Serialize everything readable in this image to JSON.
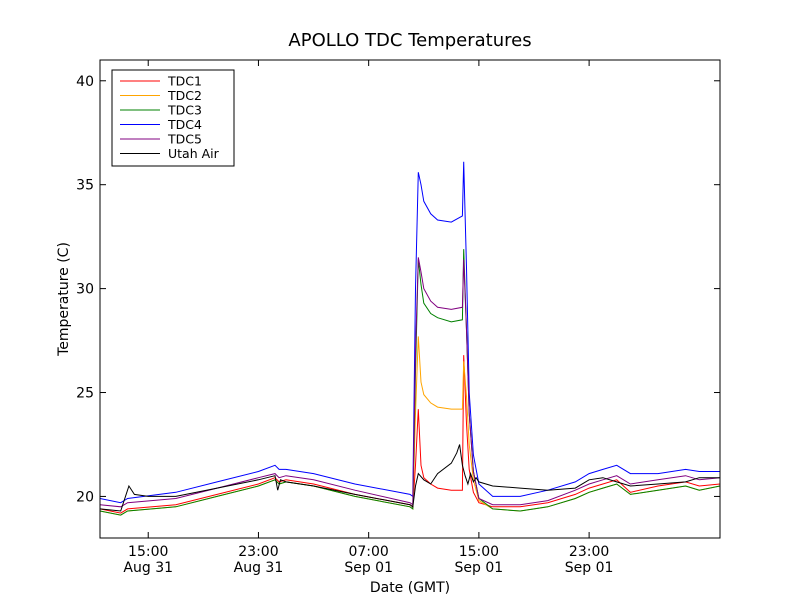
{
  "chart_data": {
    "type": "line",
    "title": "APOLLO TDC Temperatures",
    "xlabel": "Date (GMT)",
    "ylabel": "Temperature (C)",
    "ylim": [
      18,
      41
    ],
    "xlim": [
      11.5,
      56.5
    ],
    "x_unit": "hours since Aug 31 00:00 GMT",
    "yticks": [
      20,
      25,
      30,
      35,
      40
    ],
    "xticks": [
      {
        "x": 15,
        "label1": "15:00",
        "label2": "Aug 31"
      },
      {
        "x": 23,
        "label1": "23:00",
        "label2": "Aug 31"
      },
      {
        "x": 31,
        "label1": "07:00",
        "label2": "Sep 01"
      },
      {
        "x": 39,
        "label1": "15:00",
        "label2": "Sep 01"
      },
      {
        "x": 47,
        "label1": "23:00",
        "label2": "Sep 01"
      }
    ],
    "legend_position": "top-left",
    "series": [
      {
        "name": "TDC1",
        "color": "#ff0000",
        "x": [
          11.5,
          13,
          13.5,
          17,
          20,
          23,
          24.2,
          24.5,
          25,
          27,
          30,
          34,
          34.2,
          34.4,
          34.6,
          34.8,
          35,
          35.5,
          36,
          37,
          37.8,
          37.9,
          38.1,
          38.3,
          38.6,
          39,
          40,
          42,
          44,
          46,
          47,
          48,
          49,
          50,
          52,
          54,
          55,
          56.5
        ],
        "y": [
          19.4,
          19.2,
          19.4,
          19.6,
          20.1,
          20.6,
          20.9,
          20.7,
          20.8,
          20.6,
          20.1,
          19.6,
          19.5,
          21.5,
          24.2,
          21.5,
          20.9,
          20.6,
          20.4,
          20.3,
          20.3,
          26.8,
          23.5,
          21.3,
          20.2,
          19.7,
          19.5,
          19.5,
          19.7,
          20.1,
          20.4,
          20.6,
          20.8,
          20.2,
          20.5,
          20.7,
          20.5,
          20.6
        ]
      },
      {
        "name": "TDC2",
        "color": "#ffa500",
        "x": [
          11.5,
          13,
          13.5,
          17,
          20,
          23,
          24.2,
          24.5,
          25,
          27,
          30,
          34,
          34.2,
          34.4,
          34.6,
          34.8,
          35,
          35.5,
          36,
          37,
          37.8,
          37.9,
          38.1,
          38.3,
          38.6,
          39,
          40,
          42,
          44,
          46,
          47,
          48,
          49,
          50,
          52,
          54,
          55,
          56.5
        ],
        "y": [
          19.3,
          19.1,
          19.3,
          19.5,
          20,
          20.5,
          20.8,
          20.6,
          20.7,
          20.5,
          20,
          19.5,
          19.4,
          24,
          27.7,
          25.5,
          24.9,
          24.5,
          24.3,
          24.2,
          24.2,
          26.5,
          24.8,
          22.5,
          20.8,
          19.8,
          19.4,
          19.3,
          19.5,
          19.9,
          20.2,
          20.4,
          20.6,
          20.1,
          20.3,
          20.5,
          20.3,
          20.5
        ]
      },
      {
        "name": "TDC3",
        "color": "#008000",
        "x": [
          11.5,
          13,
          13.5,
          17,
          20,
          23,
          24.2,
          24.5,
          25,
          27,
          30,
          34,
          34.2,
          34.4,
          34.6,
          34.8,
          35,
          35.5,
          36,
          37,
          37.8,
          37.9,
          38.1,
          38.3,
          38.6,
          39,
          40,
          42,
          44,
          46,
          47,
          48,
          49,
          50,
          52,
          54,
          55,
          56.5
        ],
        "y": [
          19.3,
          19.1,
          19.3,
          19.5,
          20,
          20.5,
          20.8,
          20.6,
          20.7,
          20.5,
          20,
          19.5,
          19.4,
          26,
          31.4,
          30.2,
          29.3,
          28.8,
          28.6,
          28.4,
          28.5,
          31.9,
          28,
          24,
          21.2,
          19.9,
          19.4,
          19.3,
          19.5,
          19.9,
          20.2,
          20.4,
          20.6,
          20.1,
          20.3,
          20.5,
          20.3,
          20.5
        ]
      },
      {
        "name": "TDC4",
        "color": "#0000ff",
        "x": [
          11.5,
          13,
          13.5,
          17,
          20,
          23,
          24.2,
          24.5,
          25,
          27,
          30,
          34,
          34.2,
          34.4,
          34.6,
          34.8,
          35,
          35.5,
          36,
          37,
          37.8,
          37.9,
          38.1,
          38.3,
          38.6,
          39,
          40,
          42,
          44,
          46,
          47,
          48,
          49,
          50,
          52,
          54,
          55,
          56.5
        ],
        "y": [
          19.9,
          19.7,
          19.9,
          20.2,
          20.7,
          21.2,
          21.5,
          21.3,
          21.3,
          21.1,
          20.6,
          20.1,
          20,
          30,
          35.6,
          35,
          34.2,
          33.6,
          33.3,
          33.2,
          33.5,
          36.1,
          31,
          25,
          22,
          20.6,
          20,
          20,
          20.3,
          20.7,
          21.1,
          21.3,
          21.5,
          21.1,
          21.1,
          21.3,
          21.2,
          21.2
        ]
      },
      {
        "name": "TDC5",
        "color": "#800080",
        "x": [
          11.5,
          13,
          13.5,
          17,
          20,
          23,
          24.2,
          24.5,
          25,
          27,
          30,
          34,
          34.2,
          34.4,
          34.6,
          34.8,
          35,
          35.5,
          36,
          37,
          37.8,
          37.9,
          38.1,
          38.3,
          38.6,
          39,
          40,
          42,
          44,
          46,
          47,
          48,
          49,
          50,
          52,
          54,
          55,
          56.5
        ],
        "y": [
          19.6,
          19.5,
          19.7,
          19.9,
          20.4,
          20.9,
          21.1,
          20.9,
          21,
          20.8,
          20.3,
          19.7,
          19.6,
          27,
          31.5,
          30.8,
          30,
          29.4,
          29.1,
          29,
          29.1,
          31.4,
          28,
          24,
          21.2,
          19.9,
          19.6,
          19.6,
          19.8,
          20.3,
          20.6,
          20.8,
          21,
          20.6,
          20.8,
          21,
          20.8,
          20.9
        ]
      },
      {
        "name": "Utah Air",
        "color": "#000000",
        "x": [
          11.5,
          13,
          13.6,
          14,
          15,
          17,
          20,
          23,
          24.2,
          24.4,
          24.6,
          25,
          27,
          30,
          34,
          34.2,
          34.4,
          34.6,
          35,
          35.5,
          36,
          37,
          37.4,
          37.6,
          37.8,
          38,
          38.2,
          38.4,
          38.6,
          38.8,
          39,
          40,
          42,
          44,
          46,
          47,
          48,
          49,
          50,
          52,
          54,
          55,
          56.5
        ],
        "y": [
          19.4,
          19.3,
          20.5,
          20.1,
          20,
          20,
          20.4,
          20.8,
          21,
          20.3,
          20.8,
          20.7,
          20.5,
          20.1,
          19.6,
          19.5,
          20.5,
          21.1,
          20.8,
          20.6,
          21.1,
          21.6,
          22.1,
          22.5,
          21.5,
          21,
          20.6,
          21.1,
          20.7,
          20.9,
          20.7,
          20.5,
          20.4,
          20.3,
          20.4,
          20.8,
          20.9,
          20.7,
          20.5,
          20.6,
          20.7,
          20.9,
          20.9
        ]
      }
    ]
  }
}
